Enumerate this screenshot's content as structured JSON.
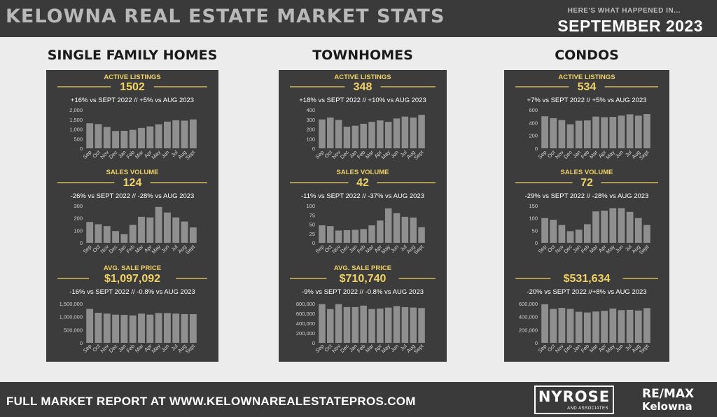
{
  "header": {
    "title": "KELOWNA REAL ESTATE MARKET STATS",
    "kicker": "HERE'S WHAT HAPPENED IN...",
    "month": "SEPTEMBER 2023"
  },
  "footer": {
    "text": "FULL MARKET REPORT AT WWW.KELOWNAREALESTATEPROS.COM",
    "logo_name": "NYROSE",
    "logo_sub": "AND ASSOCIATES",
    "remax_top": "RE/MAX",
    "remax_bottom": "Kelowna"
  },
  "colors": {
    "panel": "#3c3c3c",
    "bar": "#8f8f8f",
    "accent": "#f0d264",
    "text": "#ffffff"
  },
  "chart_data": [
    {
      "type": "bar",
      "section": "SINGLE FAMILY HOMES",
      "title": "ACTIVE LISTINGS",
      "highlight": "1502",
      "comparison": "+16% vs SEPT 2022 // +5% vs AUG 2023",
      "categories": [
        "Sep",
        "Oct",
        "Nov",
        "Dec",
        "Jan",
        "Feb",
        "Mar",
        "Apr",
        "May",
        "Jun",
        "Jul",
        "Aug",
        "Sept"
      ],
      "values": [
        1300,
        1260,
        1110,
        900,
        910,
        960,
        1060,
        1140,
        1250,
        1390,
        1460,
        1440,
        1502
      ],
      "ylim": [
        0,
        2000
      ],
      "yticks": [
        0,
        500,
        1000,
        1500,
        2000
      ],
      "ytick_labels": [
        "0",
        "500",
        "1,000",
        "1,500",
        "2,000"
      ]
    },
    {
      "type": "bar",
      "section": "SINGLE FAMILY HOMES",
      "title": "SALES VOLUME",
      "highlight": "124",
      "comparison": "-26% vs  SEPT 2022 // -28% vs AUG 2023",
      "categories": [
        "Sep",
        "Oct",
        "Nov",
        "Dec",
        "Jan",
        "Feb",
        "Mar",
        "Apr",
        "May",
        "Jun",
        "Jul",
        "Aug",
        "Sept"
      ],
      "values": [
        168,
        150,
        135,
        95,
        70,
        145,
        210,
        205,
        290,
        245,
        205,
        172,
        124
      ],
      "ylim": [
        0,
        300
      ],
      "yticks": [
        0,
        100,
        200,
        300
      ],
      "ytick_labels": [
        "0",
        "100",
        "200",
        "300"
      ]
    },
    {
      "type": "bar",
      "section": "SINGLE FAMILY HOMES",
      "title": "AVG. SALE PRICE",
      "highlight": "$1,097,092",
      "comparison": "-16% vs  SEPT 2022 // -0.8% vs AUG 2023",
      "categories": [
        "Sep",
        "Oct",
        "Nov",
        "Dec",
        "Jan",
        "Feb",
        "Mar",
        "Apr",
        "May",
        "Jun",
        "Jul",
        "Aug",
        "Sept"
      ],
      "values": [
        1300000,
        1150000,
        1120000,
        1080000,
        1070000,
        1050000,
        1120000,
        1080000,
        1140000,
        1140000,
        1120000,
        1100000,
        1097092
      ],
      "ylim": [
        0,
        1500000
      ],
      "yticks": [
        0,
        500000,
        1000000,
        1500000
      ],
      "ytick_labels": [
        "0",
        "500,000",
        "1,000,000",
        "1,500,000"
      ]
    },
    {
      "type": "bar",
      "section": "TOWNHOMES",
      "title": "ACTIVE LISTINGS",
      "highlight": "348",
      "comparison": "+18% vs SEPT 2022 // +10% vs AUG 2023",
      "categories": [
        "Sep",
        "Oct",
        "Nov",
        "Dec",
        "Jan",
        "Feb",
        "Mar",
        "Apr",
        "May",
        "Jun",
        "Jul",
        "Aug",
        "Sept"
      ],
      "values": [
        300,
        320,
        295,
        225,
        235,
        255,
        275,
        290,
        275,
        310,
        330,
        320,
        348
      ],
      "ylim": [
        0,
        400
      ],
      "yticks": [
        0,
        100,
        200,
        300,
        400
      ],
      "ytick_labels": [
        "0",
        "100",
        "200",
        "300",
        "400"
      ]
    },
    {
      "type": "bar",
      "section": "TOWNHOMES",
      "title": "SALES VOLUME",
      "highlight": "42",
      "comparison": "-11% vs  SEPT 2022 // -37% vs AUG 2023",
      "categories": [
        "Sep",
        "Oct",
        "Nov",
        "Dec",
        "Jan",
        "Feb",
        "Mar",
        "Apr",
        "May",
        "Jun",
        "Jul",
        "Aug",
        "Sept"
      ],
      "values": [
        47,
        45,
        33,
        34,
        35,
        37,
        47,
        60,
        93,
        80,
        70,
        68,
        42
      ],
      "ylim": [
        0,
        100
      ],
      "yticks": [
        0,
        25,
        50,
        75,
        100
      ],
      "ytick_labels": [
        "0",
        "25",
        "50",
        "75",
        "100"
      ]
    },
    {
      "type": "bar",
      "section": "TOWNHOMES",
      "title": "AVG. SALE PRICE",
      "highlight": "$710,740",
      "comparison": "-9% vs  SEPT 2022 // -0.8% vs AUG 2023",
      "categories": [
        "Sep",
        "Oct",
        "Nov",
        "Dec",
        "Jan",
        "Feb",
        "Mar",
        "Apr",
        "May",
        "Jun",
        "Jul",
        "Aug",
        "Sept"
      ],
      "values": [
        790000,
        690000,
        790000,
        730000,
        730000,
        760000,
        690000,
        700000,
        720000,
        750000,
        730000,
        720000,
        710740
      ],
      "ylim": [
        0,
        800000
      ],
      "yticks": [
        0,
        200000,
        400000,
        600000,
        800000
      ],
      "ytick_labels": [
        "0",
        "200,000",
        "400,000",
        "600,000",
        "800,000"
      ]
    },
    {
      "type": "bar",
      "section": "CONDOS",
      "title": "ACTIVE LISTINGS",
      "highlight": "534",
      "comparison": "+7% vs SEPT  2022 // +5% vs AUG 2023",
      "categories": [
        "Sep",
        "Oct",
        "Nov",
        "Dec",
        "Jan",
        "Feb",
        "Mar",
        "Apr",
        "May",
        "Jun",
        "Jul",
        "Aug",
        "Sept"
      ],
      "values": [
        500,
        470,
        440,
        375,
        430,
        435,
        495,
        485,
        490,
        510,
        530,
        510,
        534
      ],
      "ylim": [
        0,
        600
      ],
      "yticks": [
        0,
        200,
        400,
        600
      ],
      "ytick_labels": [
        "0",
        "200",
        "400",
        "600"
      ]
    },
    {
      "type": "bar",
      "section": "CONDOS",
      "title": "SALES VOLUME",
      "highlight": "72",
      "comparison": "-29% vs  SEPT 2022 // -28% vs AUG 2023",
      "categories": [
        "Sep",
        "Oct",
        "Nov",
        "Dec",
        "Jan",
        "Feb",
        "Mar",
        "Apr",
        "May",
        "Jun",
        "Jul",
        "Aug",
        "Sept"
      ],
      "values": [
        100,
        93,
        72,
        47,
        53,
        75,
        127,
        130,
        140,
        140,
        125,
        100,
        72
      ],
      "ylim": [
        0,
        150
      ],
      "yticks": [
        0,
        50,
        100,
        150
      ],
      "ytick_labels": [
        "0",
        "50",
        "100",
        "150"
      ]
    },
    {
      "type": "bar",
      "section": "CONDOS",
      "title": "",
      "highlight": "$531,634",
      "comparison": "-20% vs SEPT 2022 //+8% vs AUG 2023",
      "categories": [
        "Sep",
        "Oct",
        "Nov",
        "Dec",
        "Jan",
        "Feb",
        "Mar",
        "Apr",
        "May",
        "Jun",
        "Jul",
        "Aug",
        "Sept"
      ],
      "values": [
        590000,
        520000,
        535000,
        520000,
        475000,
        465000,
        480000,
        490000,
        525000,
        500000,
        505000,
        495000,
        531634
      ],
      "ylim": [
        0,
        600000
      ],
      "yticks": [
        0,
        200000,
        400000,
        600000
      ],
      "ytick_labels": [
        "0",
        "200,000",
        "400,000",
        "600,000"
      ]
    }
  ]
}
